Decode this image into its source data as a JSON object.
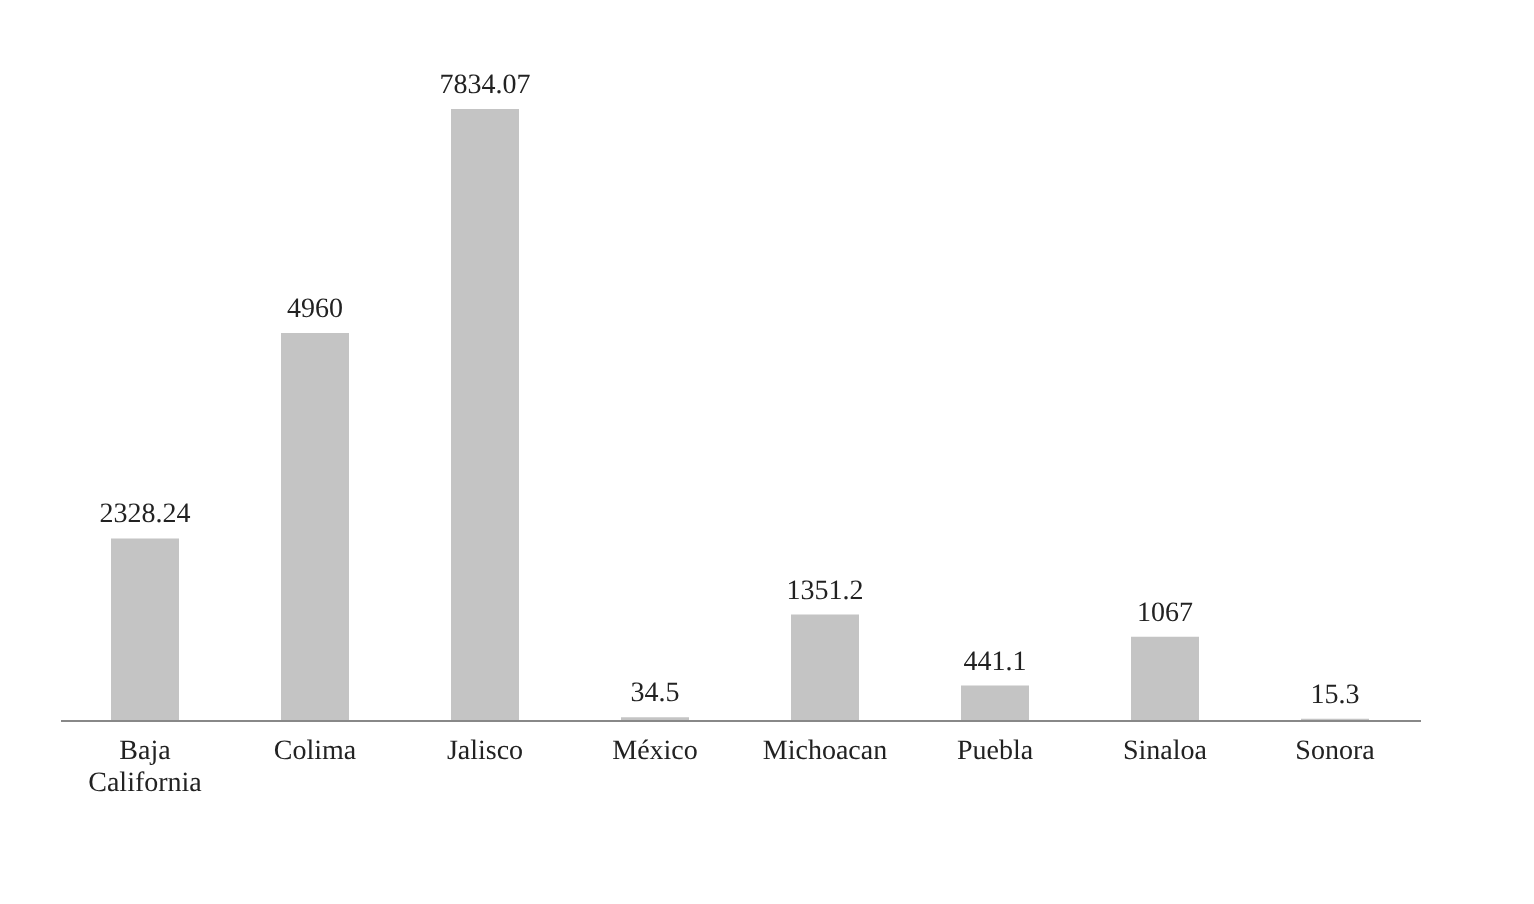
{
  "chart_data": {
    "type": "bar",
    "categories": [
      "Baja California",
      "Colima",
      "Jalisco",
      "México",
      "Michoacan",
      "Puebla",
      "Sinaloa",
      "Sonora"
    ],
    "values": [
      2328.24,
      4960,
      7834.07,
      34.5,
      1351.2,
      441.1,
      1067,
      15.3
    ],
    "color": "#c4c4c4",
    "data_labels": true
  }
}
